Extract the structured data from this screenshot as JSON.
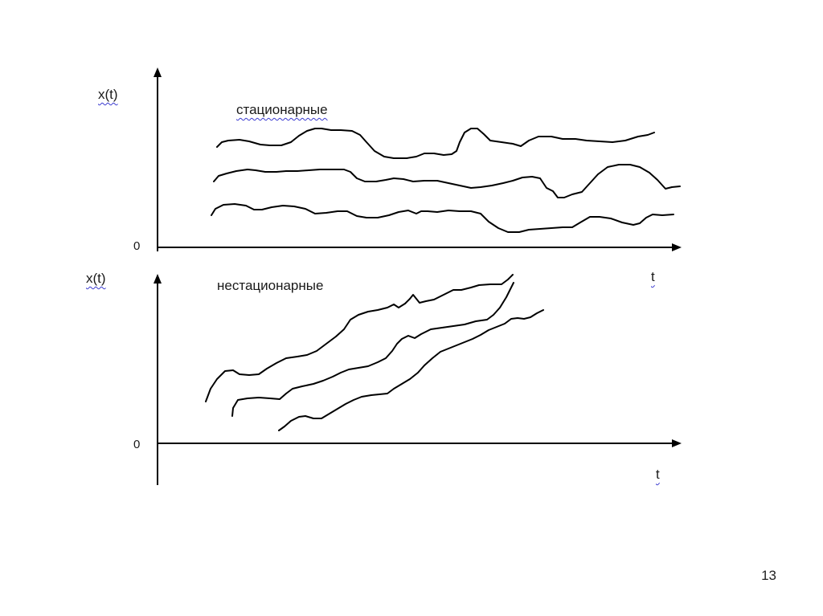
{
  "slide": {
    "page_number": "13",
    "axis_color": "#000000",
    "curve_color": "#000000"
  },
  "top_panel": {
    "y_axis_label": "x(t)",
    "x_axis_label": "t",
    "origin_label": "0",
    "title": "стационарные",
    "curve_count": 3
  },
  "bottom_panel": {
    "y_axis_label": "x(t)",
    "x_axis_label": "t",
    "origin_label": "0",
    "title": "нестационарные",
    "curve_count": 3
  }
}
